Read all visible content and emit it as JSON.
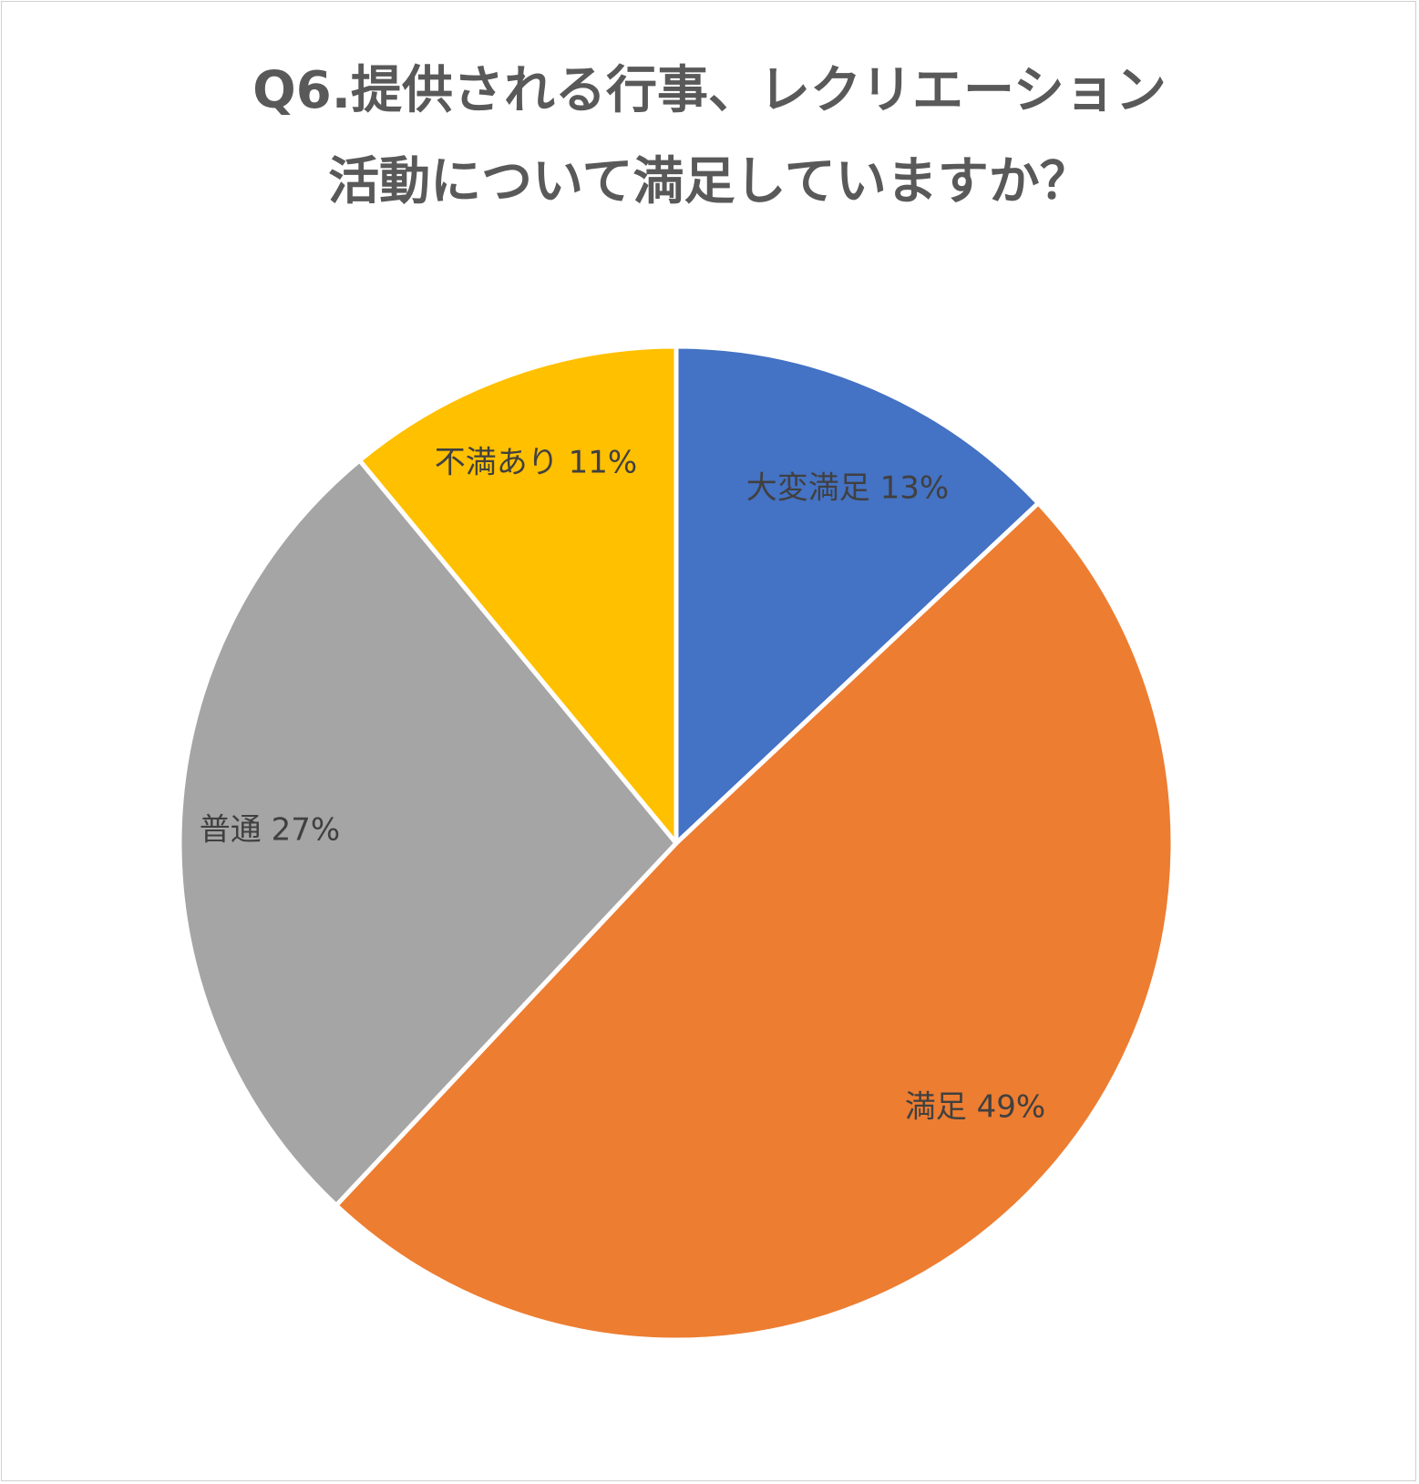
{
  "chart_data": {
    "type": "pie",
    "title_lines": [
      "Q6.提供される行事、レクリエーション",
      "活動について満足していますか？"
    ],
    "categories": [
      "大変満足",
      "満足",
      "普通",
      "不満あり"
    ],
    "values": [
      13,
      49,
      27,
      11
    ],
    "labels": [
      "大変満足 13%",
      "満足 49%",
      "普通 27%",
      "不満あり 11%"
    ],
    "colors": [
      "#4472C4",
      "#ED7D31",
      "#A5A5A5",
      "#FFC000"
    ],
    "start_angle": "12 o'clock",
    "direction": "clockwise",
    "legend": "none"
  }
}
